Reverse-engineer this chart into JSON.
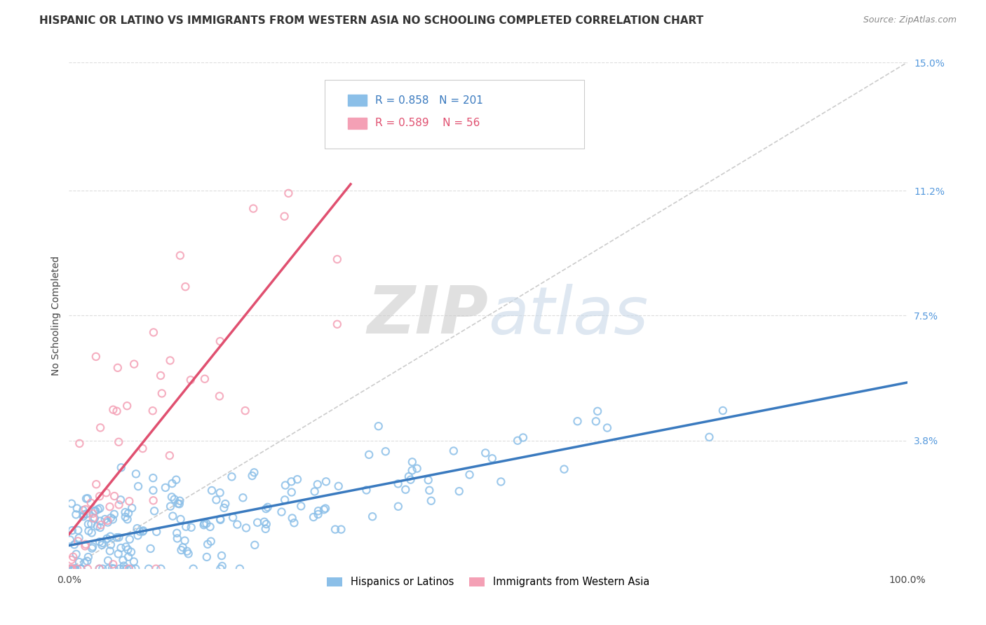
{
  "title": "HISPANIC OR LATINO VS IMMIGRANTS FROM WESTERN ASIA NO SCHOOLING COMPLETED CORRELATION CHART",
  "source": "Source: ZipAtlas.com",
  "ylabel": "No Schooling Completed",
  "xlabel": "",
  "xlim": [
    0,
    1.0
  ],
  "ylim": [
    0,
    0.15
  ],
  "x_ticks": [
    0.0,
    1.0
  ],
  "x_tick_labels": [
    "0.0%",
    "100.0%"
  ],
  "y_tick_labels": [
    "3.8%",
    "7.5%",
    "11.2%",
    "15.0%"
  ],
  "y_ticks": [
    0.038,
    0.075,
    0.112,
    0.15
  ],
  "series1_color": "#8bbfe8",
  "series2_color": "#f4a0b5",
  "series1_line_color": "#3a7abf",
  "series2_line_color": "#e05070",
  "legend_series1_label": "Hispanics or Latinos",
  "legend_series2_label": "Immigrants from Western Asia",
  "legend_R1": "0.858",
  "legend_N1": "201",
  "legend_R2": "0.589",
  "legend_N2": "56",
  "watermark_zip": "ZIP",
  "watermark_atlas": "atlas",
  "background_color": "#ffffff",
  "grid_color": "#dddddd",
  "title_fontsize": 11,
  "axis_label_fontsize": 10,
  "tick_fontsize": 10,
  "right_axis_tick_color": "#5599dd",
  "seed": 42,
  "n1": 201,
  "n2": 56
}
